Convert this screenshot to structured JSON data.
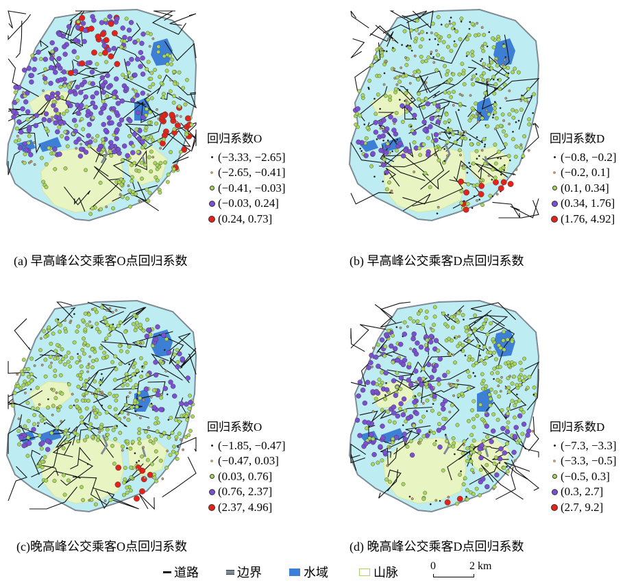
{
  "colors": {
    "land": "#bdecf2",
    "mountain": "#e8f4c2",
    "water": "#3e7fd6",
    "road": "#111111",
    "boundary": "#7d8c94",
    "class_colors": [
      "#222222",
      "#b99a72",
      "#a8d65a",
      "#7a4fd0",
      "#e0241b"
    ]
  },
  "panels": [
    {
      "id": "a",
      "legend_title": "回归系数O",
      "classes": [
        "(−3.33, −2.65]",
        "(−2.65, −0.41]",
        "(−0.41, −0.03]",
        "(−0.03, 0.24]",
        "(0.24, 0.73]"
      ],
      "caption": "(a) 早高峰公交乘客O点回归系数"
    },
    {
      "id": "b",
      "legend_title": "回归系数D",
      "classes": [
        "(−0.8, −0.2]",
        "(−0.2, 0.1]",
        "(0.1, 0.34]",
        "(0.34, 1.76]",
        "(1.76, 4.92]"
      ],
      "caption": "(b) 早高峰公交乘客D点回归系数"
    },
    {
      "id": "c",
      "legend_title": "回归系数O",
      "classes": [
        "(−1.85, −0.47]",
        "(−0.47, 0.03]",
        "(0.03, 0.76]",
        "(0.76, 2.37]",
        "(2.37, 4.96]"
      ],
      "caption": "(c)晚高峰公交乘客O点回归系数"
    },
    {
      "id": "d",
      "legend_title": "回归系数D",
      "classes": [
        "(−7.3, −3.3]",
        "(−3.3, −0.5]",
        "(−0.5, 0.3]",
        "(0.3, 2.7]",
        "(2.7, 9.2]"
      ],
      "caption": "(d) 晚高峰公交乘客D点回归系数"
    }
  ],
  "bottom_legend": {
    "road": "道路",
    "boundary": "边界",
    "water": "水域",
    "mountain": "山脉"
  },
  "scale_bar": {
    "start": "0",
    "end": "2 km"
  }
}
